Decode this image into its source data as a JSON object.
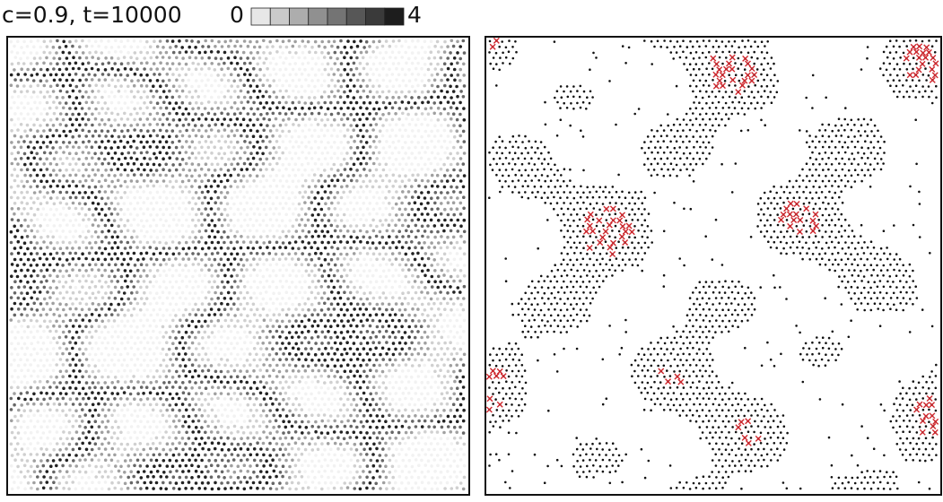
{
  "header": {
    "label": "c=0.9, t=10000"
  },
  "colorbar": {
    "range": [
      0,
      4
    ]
  }
}
